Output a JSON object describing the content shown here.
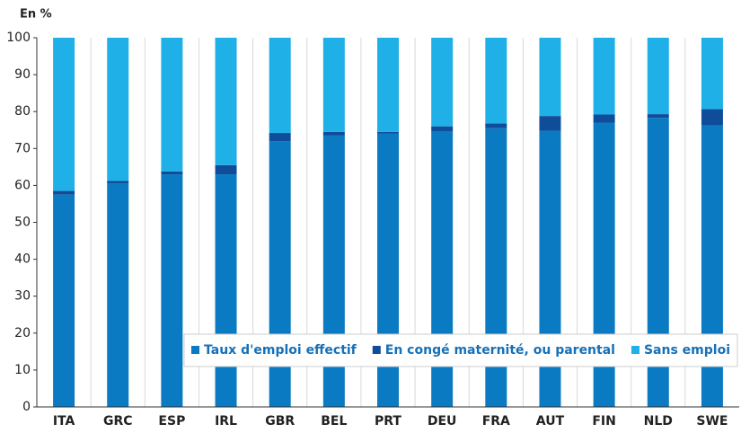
{
  "chart_data": {
    "type": "stacked-bar",
    "ylabel": "En %",
    "categories": [
      "ITA",
      "GRC",
      "ESP",
      "IRL",
      "GBR",
      "BEL",
      "PRT",
      "DEU",
      "FRA",
      "AUT",
      "FIN",
      "NLD",
      "SWE"
    ],
    "series": [
      {
        "name": "Taux d'emploi effectif",
        "color": "#0a7bc2",
        "values": [
          57.5,
          60.5,
          63,
          63,
          72,
          73.5,
          74,
          74.7,
          75.5,
          74.8,
          77,
          78.3,
          76.2
        ]
      },
      {
        "name": "En congé maternité, ou parental",
        "color": "#0f4c9a",
        "values": [
          1,
          0.7,
          0.8,
          2.5,
          2.2,
          1,
          0.5,
          1.3,
          1.3,
          4,
          2.2,
          1,
          4.5
        ]
      },
      {
        "name": "Sans emploi",
        "color": "#1fb0e8",
        "values": [
          41.5,
          38.8,
          36.2,
          34.5,
          25.8,
          25.5,
          25.5,
          24,
          23.2,
          21.2,
          20.8,
          20.7,
          19.3
        ]
      }
    ],
    "ylim": [
      0,
      100
    ],
    "yticks": [
      0,
      10,
      20,
      30,
      40,
      50,
      60,
      70,
      80,
      90,
      100
    ],
    "legend": "lower right"
  }
}
